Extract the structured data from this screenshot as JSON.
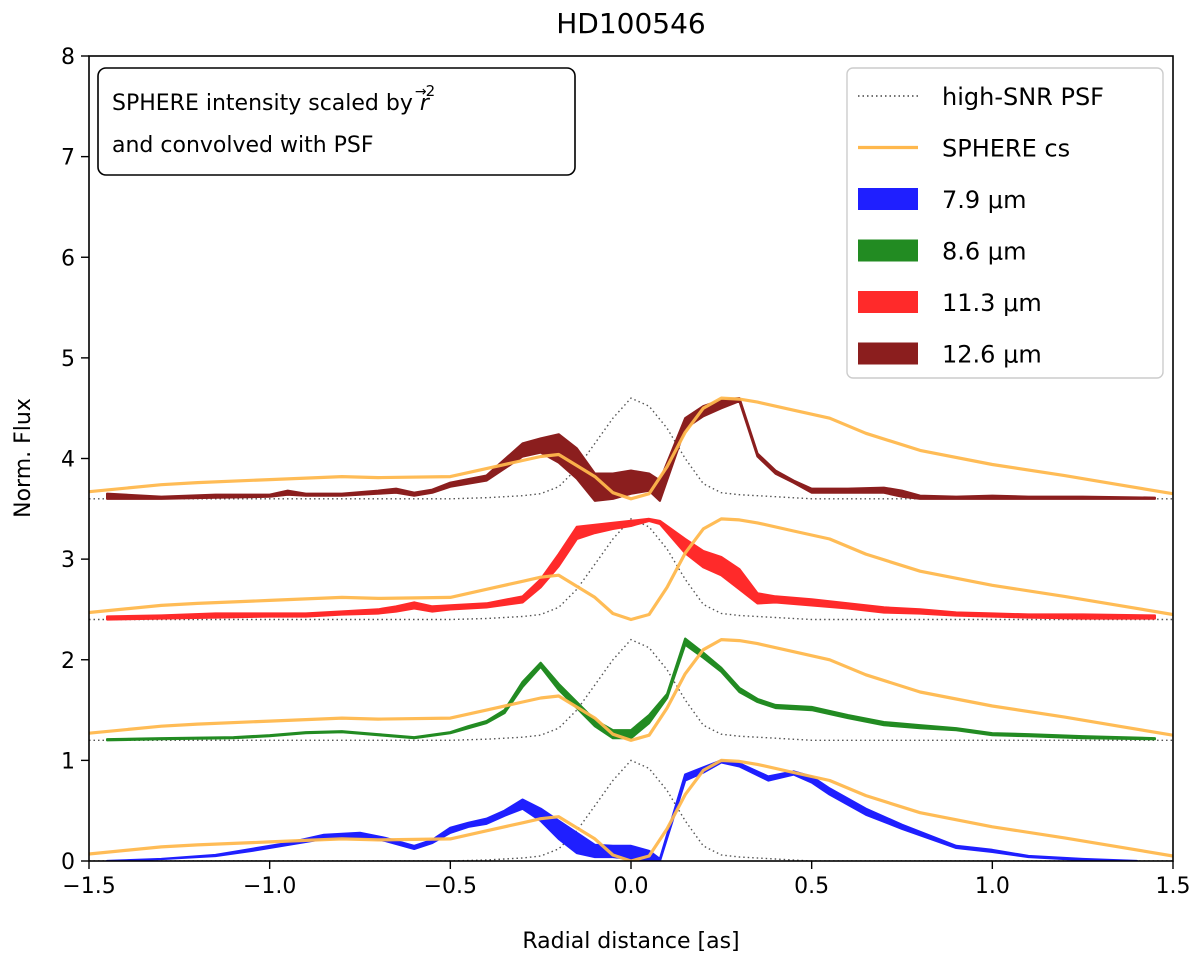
{
  "chart_data": {
    "type": "line",
    "title": "HD100546",
    "xlabel": "Radial distance [as]",
    "ylabel": "Norm. Flux",
    "xlim": [
      -1.5,
      1.5
    ],
    "ylim": [
      0,
      8
    ],
    "xticks": [
      -1.5,
      -1.0,
      -0.5,
      0.0,
      0.5,
      1.0,
      1.5
    ],
    "xtick_labels": [
      "−1.5",
      "−1.0",
      "−0.5",
      "0.0",
      "0.5",
      "1.0",
      "1.5"
    ],
    "yticks": [
      0,
      1,
      2,
      3,
      4,
      5,
      6,
      7,
      8
    ],
    "ytick_labels": [
      "0",
      "1",
      "2",
      "3",
      "4",
      "5",
      "6",
      "7",
      "8"
    ],
    "annotation": {
      "line1_prefix": "SPHERE intensity scaled by ",
      "line1_r": "r",
      "line1_arrow": "→",
      "line1_sup": "2",
      "line2": " and convolved with PSF"
    },
    "legend": [
      {
        "label": "high-SNR PSF",
        "kind": "dotted",
        "color": "#444444"
      },
      {
        "label": "SPHERE cs",
        "kind": "line",
        "color": "#ffb84d"
      },
      {
        "label": "7.9 μm",
        "kind": "patch",
        "color": "#1f1fff"
      },
      {
        "label": "8.6 μm",
        "kind": "patch",
        "color": "#228b22"
      },
      {
        "label": "11.3 μm",
        "kind": "patch",
        "color": "#ff2a2a"
      },
      {
        "label": "12.6 μm",
        "kind": "patch",
        "color": "#8b1e1e"
      }
    ],
    "colors": {
      "sphere": "#ffb84d",
      "psf": "#555555"
    },
    "series": [
      {
        "name": "7.9 μm",
        "offset": 0,
        "color": "#1f1fff",
        "x": [
          -1.45,
          -1.3,
          -1.15,
          -1.05,
          -0.95,
          -0.85,
          -0.75,
          -0.68,
          -0.6,
          -0.55,
          -0.5,
          -0.45,
          -0.4,
          -0.35,
          -0.3,
          -0.25,
          -0.2,
          -0.15,
          -0.1,
          -0.05,
          0.0,
          0.05,
          0.08,
          0.15,
          0.2,
          0.25,
          0.3,
          0.38,
          0.45,
          0.5,
          0.55,
          0.65,
          0.75,
          0.9,
          1.0,
          1.1,
          1.25,
          1.4
        ],
        "low": [
          0.0,
          0.02,
          0.05,
          0.1,
          0.16,
          0.22,
          0.24,
          0.2,
          0.12,
          0.18,
          0.28,
          0.34,
          0.37,
          0.45,
          0.52,
          0.4,
          0.22,
          0.08,
          0.04,
          0.04,
          0.02,
          0.0,
          0.0,
          0.8,
          0.88,
          0.98,
          0.94,
          0.8,
          0.86,
          0.78,
          0.66,
          0.46,
          0.32,
          0.13,
          0.09,
          0.04,
          0.01,
          0.0
        ],
        "high": [
          0.0,
          0.02,
          0.06,
          0.12,
          0.18,
          0.26,
          0.28,
          0.23,
          0.15,
          0.21,
          0.33,
          0.38,
          0.42,
          0.5,
          0.61,
          0.52,
          0.4,
          0.28,
          0.16,
          0.15,
          0.15,
          0.1,
          0.02,
          0.86,
          0.93,
          1.0,
          0.97,
          0.84,
          0.89,
          0.84,
          0.72,
          0.52,
          0.36,
          0.15,
          0.11,
          0.05,
          0.02,
          0.0
        ]
      },
      {
        "name": "8.6 μm",
        "offset": 1.2,
        "color": "#228b22",
        "x": [
          -1.45,
          -1.3,
          -1.1,
          -1.0,
          -0.9,
          -0.8,
          -0.7,
          -0.6,
          -0.5,
          -0.45,
          -0.4,
          -0.35,
          -0.3,
          -0.25,
          -0.2,
          -0.15,
          -0.1,
          -0.05,
          0.0,
          0.05,
          0.1,
          0.15,
          0.2,
          0.25,
          0.3,
          0.35,
          0.4,
          0.5,
          0.6,
          0.7,
          0.8,
          0.9,
          1.0,
          1.1,
          1.25,
          1.45
        ],
        "low": [
          1.2,
          1.21,
          1.22,
          1.24,
          1.27,
          1.28,
          1.25,
          1.22,
          1.27,
          1.32,
          1.37,
          1.47,
          1.73,
          1.93,
          1.7,
          1.52,
          1.34,
          1.22,
          1.22,
          1.37,
          1.62,
          2.15,
          2.02,
          1.88,
          1.68,
          1.58,
          1.52,
          1.5,
          1.42,
          1.35,
          1.32,
          1.3,
          1.25,
          1.24,
          1.22,
          1.21
        ],
        "high": [
          1.21,
          1.22,
          1.23,
          1.25,
          1.28,
          1.29,
          1.26,
          1.23,
          1.28,
          1.34,
          1.39,
          1.5,
          1.78,
          1.97,
          1.76,
          1.58,
          1.4,
          1.3,
          1.3,
          1.45,
          1.66,
          2.21,
          2.07,
          1.92,
          1.72,
          1.61,
          1.55,
          1.53,
          1.45,
          1.38,
          1.35,
          1.32,
          1.27,
          1.26,
          1.24,
          1.22
        ]
      },
      {
        "name": "11.3 μm",
        "offset": 2.4,
        "color": "#ff2a2a",
        "x": [
          -1.45,
          -1.3,
          -1.15,
          -1.0,
          -0.9,
          -0.8,
          -0.7,
          -0.65,
          -0.6,
          -0.55,
          -0.5,
          -0.4,
          -0.3,
          -0.25,
          -0.2,
          -0.15,
          -0.1,
          -0.05,
          0.0,
          0.05,
          0.08,
          0.15,
          0.2,
          0.25,
          0.3,
          0.35,
          0.4,
          0.5,
          0.6,
          0.7,
          0.8,
          0.9,
          1.0,
          1.1,
          1.25,
          1.45
        ],
        "low": [
          2.4,
          2.41,
          2.42,
          2.43,
          2.43,
          2.45,
          2.46,
          2.48,
          2.51,
          2.48,
          2.5,
          2.52,
          2.57,
          2.72,
          2.93,
          3.2,
          3.26,
          3.3,
          3.33,
          3.38,
          3.35,
          3.06,
          2.92,
          2.84,
          2.7,
          2.56,
          2.57,
          2.54,
          2.51,
          2.47,
          2.46,
          2.44,
          2.43,
          2.42,
          2.41,
          2.41
        ],
        "high": [
          2.43,
          2.44,
          2.46,
          2.46,
          2.46,
          2.48,
          2.5,
          2.53,
          2.57,
          2.53,
          2.54,
          2.56,
          2.63,
          2.8,
          3.05,
          3.32,
          3.34,
          3.36,
          3.38,
          3.4,
          3.38,
          3.2,
          3.08,
          3.02,
          2.9,
          2.66,
          2.63,
          2.6,
          2.56,
          2.52,
          2.5,
          2.47,
          2.46,
          2.45,
          2.45,
          2.44
        ]
      },
      {
        "name": "12.6 μm",
        "offset": 3.6,
        "color": "#8b1e1e",
        "x": [
          -1.45,
          -1.3,
          -1.15,
          -1.0,
          -0.95,
          -0.9,
          -0.8,
          -0.7,
          -0.65,
          -0.6,
          -0.55,
          -0.5,
          -0.4,
          -0.3,
          -0.25,
          -0.2,
          -0.15,
          -0.1,
          -0.05,
          0.0,
          0.05,
          0.08,
          0.15,
          0.2,
          0.25,
          0.3,
          0.35,
          0.4,
          0.45,
          0.5,
          0.6,
          0.7,
          0.75,
          0.8,
          0.9,
          1.0,
          1.1,
          1.25,
          1.45
        ],
        "low": [
          3.6,
          3.6,
          3.61,
          3.62,
          3.64,
          3.63,
          3.63,
          3.65,
          3.66,
          3.63,
          3.66,
          3.72,
          3.78,
          4.02,
          4.06,
          3.96,
          3.8,
          3.58,
          3.6,
          3.65,
          3.68,
          3.58,
          4.3,
          4.42,
          4.5,
          4.57,
          4.02,
          3.85,
          3.76,
          3.66,
          3.66,
          3.66,
          3.62,
          3.6,
          3.6,
          3.6,
          3.6,
          3.6,
          3.6
        ],
        "high": [
          3.65,
          3.62,
          3.64,
          3.64,
          3.68,
          3.65,
          3.65,
          3.68,
          3.7,
          3.66,
          3.69,
          3.76,
          3.83,
          4.15,
          4.2,
          4.24,
          4.1,
          3.85,
          3.85,
          3.88,
          3.85,
          3.78,
          4.4,
          4.52,
          4.58,
          4.6,
          4.05,
          3.88,
          3.78,
          3.7,
          3.7,
          3.71,
          3.68,
          3.63,
          3.62,
          3.63,
          3.62,
          3.62,
          3.61
        ]
      }
    ],
    "sphere_cs": {
      "x": [
        -1.5,
        -1.3,
        -1.2,
        -1.0,
        -0.8,
        -0.7,
        -0.5,
        -0.4,
        -0.3,
        -0.25,
        -0.2,
        -0.1,
        -0.05,
        0.0,
        0.05,
        0.1,
        0.15,
        0.2,
        0.25,
        0.3,
        0.35,
        0.45,
        0.55,
        0.65,
        0.8,
        1.0,
        1.2,
        1.35,
        1.5
      ],
      "base": [
        0.07,
        0.14,
        0.16,
        0.19,
        0.22,
        0.21,
        0.22,
        0.3,
        0.38,
        0.42,
        0.44,
        0.22,
        0.06,
        0.0,
        0.05,
        0.32,
        0.66,
        0.9,
        1.0,
        0.99,
        0.96,
        0.88,
        0.8,
        0.65,
        0.48,
        0.34,
        0.23,
        0.14,
        0.05
      ]
    },
    "psf": {
      "x": [
        -1.5,
        -0.5,
        -0.4,
        -0.3,
        -0.25,
        -0.2,
        -0.15,
        -0.1,
        -0.05,
        0.0,
        0.05,
        0.1,
        0.15,
        0.2,
        0.25,
        0.3,
        0.4,
        0.5,
        1.5
      ],
      "base": [
        0.0,
        0.0,
        0.01,
        0.03,
        0.05,
        0.12,
        0.3,
        0.55,
        0.8,
        1.0,
        0.92,
        0.7,
        0.4,
        0.15,
        0.06,
        0.04,
        0.02,
        0.0,
        0.0
      ]
    }
  }
}
